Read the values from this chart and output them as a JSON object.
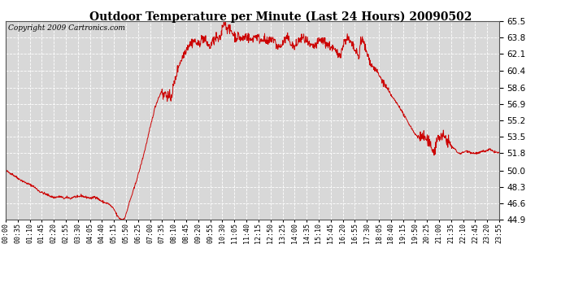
{
  "title": "Outdoor Temperature per Minute (Last 24 Hours) 20090502",
  "copyright": "Copyright 2009 Cartronics.com",
  "line_color": "#cc0000",
  "bg_color": "#ffffff",
  "plot_bg_color": "#d8d8d8",
  "grid_color": "#ffffff",
  "yticks": [
    44.9,
    46.6,
    48.3,
    50.0,
    51.8,
    53.5,
    55.2,
    56.9,
    58.6,
    60.4,
    62.1,
    63.8,
    65.5
  ],
  "ylim": [
    44.9,
    65.5
  ],
  "xtick_labels": [
    "00:00",
    "00:35",
    "01:10",
    "01:45",
    "02:20",
    "02:55",
    "03:30",
    "04:05",
    "04:40",
    "05:15",
    "05:50",
    "06:25",
    "07:00",
    "07:35",
    "08:10",
    "08:45",
    "09:20",
    "09:55",
    "10:30",
    "11:05",
    "11:40",
    "12:15",
    "12:50",
    "13:25",
    "14:00",
    "14:35",
    "15:10",
    "15:45",
    "16:20",
    "16:55",
    "17:30",
    "18:05",
    "18:40",
    "19:15",
    "19:50",
    "20:25",
    "21:00",
    "21:35",
    "22:10",
    "22:45",
    "23:20",
    "23:55"
  ],
  "num_points": 1440,
  "key_points": [
    [
      0,
      50.0
    ],
    [
      20,
      49.6
    ],
    [
      40,
      49.1
    ],
    [
      60,
      48.7
    ],
    [
      80,
      48.4
    ],
    [
      100,
      47.8
    ],
    [
      120,
      47.5
    ],
    [
      140,
      47.2
    ],
    [
      160,
      47.3
    ],
    [
      170,
      47.1
    ],
    [
      180,
      47.2
    ],
    [
      190,
      47.1
    ],
    [
      200,
      47.3
    ],
    [
      210,
      47.2
    ],
    [
      220,
      47.4
    ],
    [
      230,
      47.25
    ],
    [
      240,
      47.2
    ],
    [
      250,
      47.1
    ],
    [
      260,
      47.3
    ],
    [
      270,
      47.05
    ],
    [
      280,
      46.8
    ],
    [
      290,
      46.65
    ],
    [
      300,
      46.55
    ],
    [
      310,
      46.2
    ],
    [
      315,
      46.0
    ],
    [
      320,
      45.7
    ],
    [
      325,
      45.3
    ],
    [
      330,
      45.1
    ],
    [
      335,
      44.95
    ],
    [
      340,
      44.9
    ],
    [
      345,
      45.0
    ],
    [
      350,
      45.3
    ],
    [
      360,
      46.6
    ],
    [
      375,
      48.2
    ],
    [
      390,
      50.0
    ],
    [
      405,
      52.0
    ],
    [
      415,
      53.5
    ],
    [
      425,
      55.0
    ],
    [
      435,
      56.5
    ],
    [
      445,
      57.5
    ],
    [
      452,
      58.0
    ],
    [
      456,
      58.5
    ],
    [
      460,
      57.5
    ],
    [
      464,
      58.2
    ],
    [
      468,
      57.8
    ],
    [
      472,
      57.9
    ],
    [
      476,
      57.5
    ],
    [
      480,
      57.5
    ],
    [
      485,
      58.0
    ],
    [
      490,
      58.8
    ],
    [
      498,
      60.0
    ],
    [
      505,
      61.0
    ],
    [
      512,
      61.5
    ],
    [
      518,
      62.0
    ],
    [
      525,
      62.5
    ],
    [
      532,
      63.0
    ],
    [
      540,
      63.2
    ],
    [
      548,
      63.5
    ],
    [
      555,
      63.3
    ],
    [
      562,
      63.0
    ],
    [
      568,
      63.5
    ],
    [
      575,
      63.8
    ],
    [
      582,
      63.5
    ],
    [
      588,
      63.2
    ],
    [
      595,
      62.8
    ],
    [
      602,
      63.3
    ],
    [
      608,
      63.5
    ],
    [
      615,
      63.8
    ],
    [
      622,
      63.5
    ],
    [
      628,
      64.0
    ],
    [
      633,
      65.2
    ],
    [
      638,
      65.5
    ],
    [
      643,
      65.0
    ],
    [
      648,
      64.8
    ],
    [
      653,
      64.5
    ],
    [
      658,
      64.5
    ],
    [
      663,
      64.2
    ],
    [
      668,
      64.0
    ],
    [
      673,
      63.8
    ],
    [
      678,
      64.0
    ],
    [
      683,
      63.8
    ],
    [
      688,
      63.6
    ],
    [
      693,
      63.8
    ],
    [
      700,
      64.0
    ],
    [
      708,
      63.8
    ],
    [
      715,
      63.5
    ],
    [
      722,
      63.8
    ],
    [
      730,
      64.0
    ],
    [
      737,
      63.8
    ],
    [
      743,
      63.5
    ],
    [
      750,
      63.8
    ],
    [
      757,
      63.5
    ],
    [
      763,
      63.2
    ],
    [
      770,
      63.5
    ],
    [
      777,
      63.8
    ],
    [
      783,
      63.5
    ],
    [
      790,
      63.0
    ],
    [
      797,
      62.8
    ],
    [
      805,
      63.0
    ],
    [
      812,
      63.5
    ],
    [
      820,
      63.8
    ],
    [
      828,
      63.5
    ],
    [
      835,
      63.0
    ],
    [
      843,
      62.8
    ],
    [
      855,
      63.5
    ],
    [
      865,
      63.8
    ],
    [
      875,
      63.5
    ],
    [
      885,
      63.0
    ],
    [
      895,
      62.8
    ],
    [
      905,
      63.0
    ],
    [
      915,
      63.5
    ],
    [
      925,
      63.5
    ],
    [
      935,
      63.2
    ],
    [
      942,
      63.0
    ],
    [
      950,
      62.8
    ],
    [
      958,
      62.5
    ],
    [
      965,
      62.2
    ],
    [
      972,
      62.0
    ],
    [
      980,
      62.5
    ],
    [
      988,
      63.5
    ],
    [
      995,
      63.8
    ],
    [
      1002,
      63.5
    ],
    [
      1010,
      63.0
    ],
    [
      1018,
      62.5
    ],
    [
      1025,
      62.0
    ],
    [
      1030,
      61.8
    ],
    [
      1035,
      63.5
    ],
    [
      1040,
      63.5
    ],
    [
      1045,
      63.2
    ],
    [
      1050,
      62.5
    ],
    [
      1055,
      62.0
    ],
    [
      1060,
      61.5
    ],
    [
      1065,
      61.0
    ],
    [
      1070,
      60.8
    ],
    [
      1080,
      60.4
    ],
    [
      1090,
      59.8
    ],
    [
      1100,
      59.2
    ],
    [
      1110,
      58.6
    ],
    [
      1120,
      58.0
    ],
    [
      1130,
      57.5
    ],
    [
      1140,
      57.0
    ],
    [
      1150,
      56.5
    ],
    [
      1160,
      55.8
    ],
    [
      1170,
      55.2
    ],
    [
      1180,
      54.6
    ],
    [
      1190,
      54.0
    ],
    [
      1200,
      53.5
    ],
    [
      1210,
      53.5
    ],
    [
      1220,
      53.5
    ],
    [
      1230,
      53.0
    ],
    [
      1240,
      52.5
    ],
    [
      1250,
      52.0
    ],
    [
      1260,
      53.5
    ],
    [
      1270,
      53.5
    ],
    [
      1280,
      53.5
    ],
    [
      1290,
      53.0
    ],
    [
      1300,
      52.5
    ],
    [
      1310,
      52.2
    ],
    [
      1320,
      51.8
    ],
    [
      1330,
      51.8
    ],
    [
      1340,
      52.0
    ],
    [
      1350,
      52.0
    ],
    [
      1360,
      51.8
    ],
    [
      1370,
      51.8
    ],
    [
      1380,
      51.8
    ],
    [
      1390,
      52.0
    ],
    [
      1400,
      52.0
    ],
    [
      1410,
      52.2
    ],
    [
      1420,
      52.0
    ],
    [
      1430,
      51.9
    ],
    [
      1439,
      51.8
    ]
  ]
}
